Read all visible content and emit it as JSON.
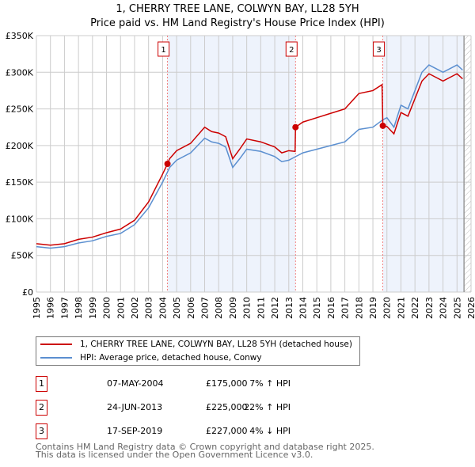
{
  "chart_data": {
    "type": "line",
    "title": "1, CHERRY TREE LANE, COLWYN BAY, LL28 5YH",
    "subtitle": "Price paid vs. HM Land Registry's House Price Index (HPI)",
    "xlim": [
      1995,
      2026
    ],
    "ylim": [
      0,
      350000
    ],
    "yticks": [
      0,
      50000,
      100000,
      150000,
      200000,
      250000,
      300000,
      350000
    ],
    "ytick_labels": [
      "£0",
      "£50K",
      "£100K",
      "£150K",
      "£200K",
      "£250K",
      "£300K",
      "£350K"
    ],
    "xticks": [
      1995,
      1996,
      1997,
      1998,
      1999,
      2000,
      2001,
      2002,
      2003,
      2004,
      2005,
      2006,
      2007,
      2008,
      2009,
      2010,
      2011,
      2012,
      2013,
      2014,
      2015,
      2016,
      2017,
      2018,
      2019,
      2020,
      2021,
      2022,
      2023,
      2024,
      2025,
      2026
    ],
    "grid": true,
    "data_end": 2025.5,
    "series": [
      {
        "name": "1, CHERRY TREE LANE, COLWYN BAY, LL28 5YH (detached house)",
        "color": "#cc0000",
        "x": [
          1995,
          1996,
          1997,
          1998,
          1999,
          2000,
          2001,
          2002,
          2003,
          2004,
          2004.35,
          2004.5,
          2005,
          2006,
          2007,
          2007.5,
          2008,
          2008.5,
          2009,
          2009.5,
          2010,
          2011,
          2012,
          2012.5,
          2013,
          2013.45,
          2013.48,
          2014,
          2015,
          2016,
          2017,
          2018,
          2019,
          2019.65,
          2019.71,
          2020,
          2020.5,
          2021,
          2021.5,
          2022,
          2022.5,
          2023,
          2023.5,
          2024,
          2024.5,
          2025,
          2025.4
        ],
        "y": [
          66000,
          64000,
          66000,
          72000,
          75000,
          81000,
          86000,
          98000,
          123000,
          161000,
          175000,
          182000,
          193000,
          203000,
          225000,
          219000,
          217000,
          212000,
          182000,
          195000,
          209000,
          205000,
          198000,
          190000,
          193000,
          192000,
          225000,
          232000,
          238000,
          244000,
          250000,
          271000,
          275000,
          283000,
          227000,
          226000,
          216000,
          245000,
          240000,
          264000,
          288000,
          298000,
          293000,
          288000,
          293000,
          298000,
          291000
        ]
      },
      {
        "name": "HPI: Average price, detached house, Conwy",
        "color": "#5b8fd0",
        "x": [
          1995,
          1996,
          1997,
          1998,
          1999,
          2000,
          2001,
          2002,
          2003,
          2004,
          2004.5,
          2005,
          2006,
          2007,
          2007.5,
          2008,
          2008.5,
          2009,
          2009.5,
          2010,
          2011,
          2012,
          2012.5,
          2013,
          2013.5,
          2014,
          2015,
          2016,
          2017,
          2018,
          2019,
          2019.7,
          2020,
          2020.5,
          2021,
          2021.5,
          2022,
          2022.5,
          2023,
          2023.5,
          2024,
          2024.5,
          2025,
          2025.4
        ],
        "y": [
          62000,
          60000,
          62000,
          67000,
          70000,
          76000,
          80000,
          92000,
          115000,
          150000,
          170000,
          180000,
          190000,
          210000,
          205000,
          203000,
          198000,
          170000,
          182000,
          195000,
          192000,
          185000,
          178000,
          180000,
          185000,
          190000,
          195000,
          200000,
          205000,
          222000,
          225000,
          235000,
          238000,
          225000,
          255000,
          250000,
          275000,
          300000,
          310000,
          305000,
          300000,
          305000,
          310000,
          303000
        ]
      }
    ],
    "sales": [
      {
        "label": "1",
        "x": 2004.35,
        "price": 175000
      },
      {
        "label": "2",
        "x": 2013.48,
        "price": 225000
      },
      {
        "label": "3",
        "x": 2019.71,
        "price": 227000
      }
    ]
  },
  "table": [
    {
      "num": "1",
      "date": "07-MAY-2004",
      "price": "£175,000",
      "hpi": "7% ↑ HPI"
    },
    {
      "num": "2",
      "date": "24-JUN-2013",
      "price": "£225,000",
      "hpi": "22% ↑ HPI"
    },
    {
      "num": "3",
      "date": "17-SEP-2019",
      "price": "£227,000",
      "hpi": "4% ↓ HPI"
    }
  ],
  "footer": [
    "Contains HM Land Registry data © Crown copyright and database right 2025.",
    "This data is licensed under the Open Government Licence v3.0."
  ]
}
